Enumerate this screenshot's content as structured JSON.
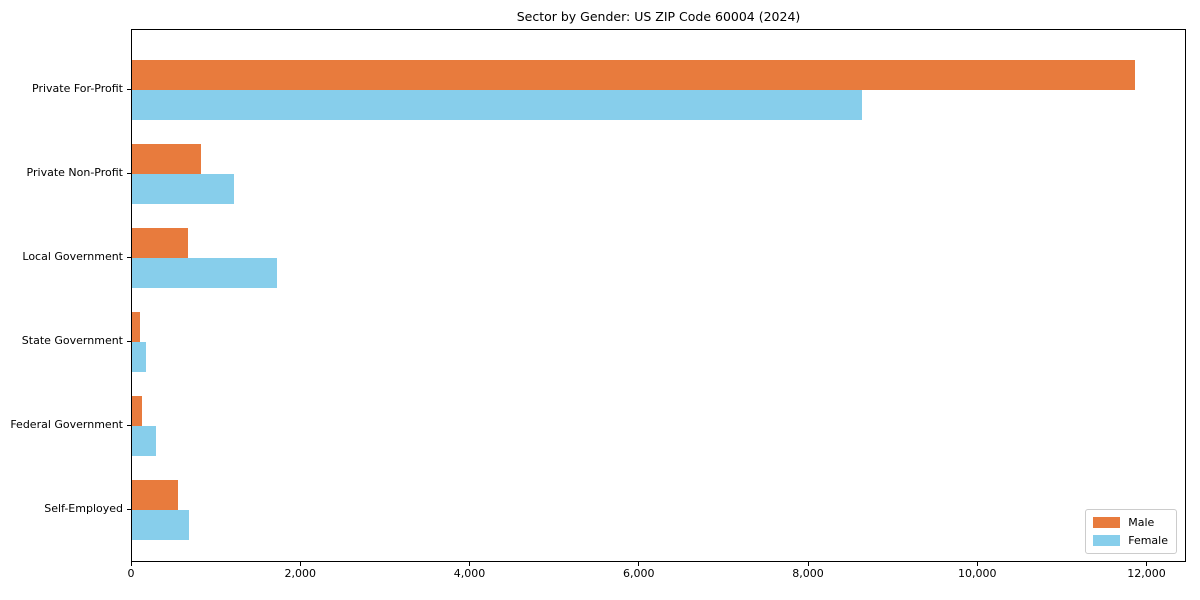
{
  "title": "Sector by Gender: US ZIP Code 60004 (2024)",
  "legend": {
    "position": "lower right",
    "items": [
      {
        "label": "Male",
        "color": "#e87b3d"
      },
      {
        "label": "Female",
        "color": "#87ceeb"
      }
    ]
  },
  "chart_data": {
    "type": "bar",
    "orientation": "horizontal",
    "title": "Sector by Gender: US ZIP Code 60004 (2024)",
    "xlabel": "",
    "ylabel": "",
    "categories": [
      "Private For-Profit",
      "Private Non-Profit",
      "Local Government",
      "State Government",
      "Federal Government",
      "Self-Employed"
    ],
    "series": [
      {
        "name": "Male",
        "color": "#e87b3d",
        "values": [
          11850,
          820,
          665,
          90,
          120,
          545
        ]
      },
      {
        "name": "Female",
        "color": "#87ceeb",
        "values": [
          8630,
          1210,
          1710,
          170,
          280,
          670
        ]
      }
    ],
    "xlim": [
      0,
      12443
    ],
    "xticks": [
      0,
      2000,
      4000,
      6000,
      8000,
      10000,
      12000
    ],
    "xtick_labels": [
      "0",
      "2,000",
      "4,000",
      "6,000",
      "8,000",
      "10,000",
      "12,000"
    ],
    "grid": false,
    "legend_position": "lower right",
    "axis_color": "#000000",
    "background_color": "#ffffff"
  }
}
